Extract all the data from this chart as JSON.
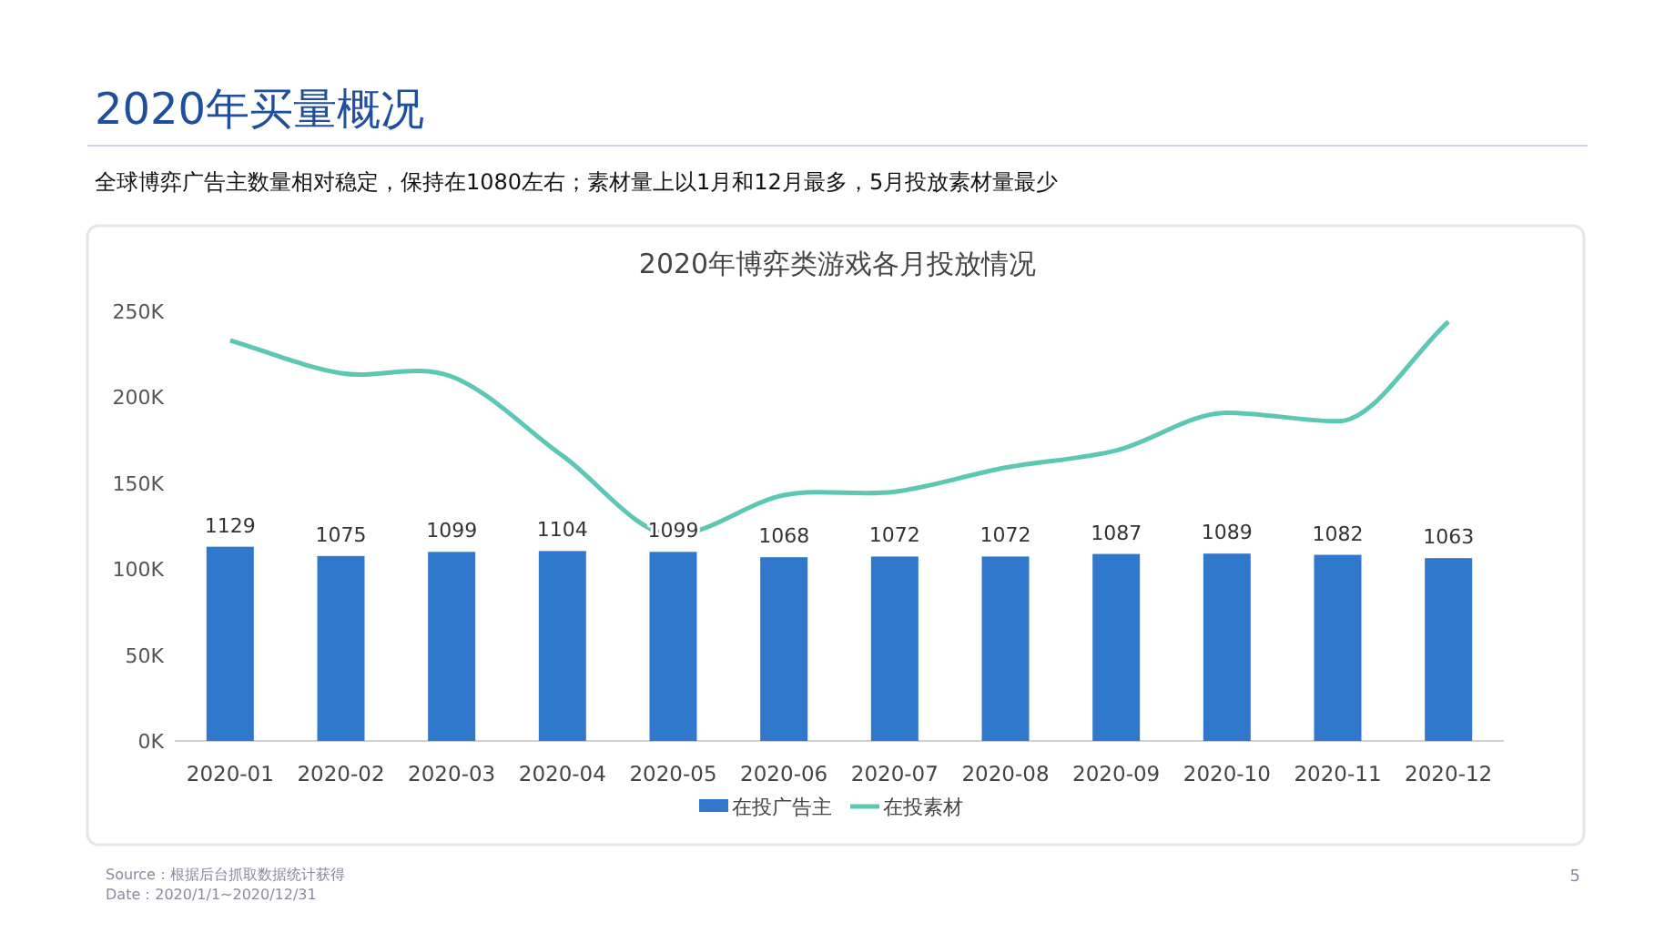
{
  "chart_data": {
    "type": "bar",
    "title": "2020年博弈类游戏各月投放情况",
    "categories": [
      "2020-01",
      "2020-02",
      "2020-03",
      "2020-04",
      "2020-05",
      "2020-06",
      "2020-07",
      "2020-08",
      "2020-09",
      "2020-10",
      "2020-11",
      "2020-12"
    ],
    "series": [
      {
        "name": "在投广告主",
        "axis": "y2",
        "color": "#2f78cb",
        "values": [
          1129,
          1075,
          1099,
          1104,
          1099,
          1068,
          1072,
          1072,
          1087,
          1089,
          1082,
          1063
        ],
        "value_labels": [
          "1129",
          "1075",
          "1099",
          "1104",
          "1099",
          "1068",
          "1072",
          "1072",
          "1087",
          "1089",
          "1082",
          "1063"
        ]
      },
      {
        "name": "在投素材",
        "type": "line",
        "color": "#5cc8b4",
        "values": [
          233,
          214,
          212,
          166,
          120,
          143,
          145,
          159,
          169,
          191,
          186,
          244
        ]
      }
    ],
    "ylim": [
      0,
      250
    ],
    "yticks": [
      {
        "value": 0,
        "label": "0K"
      },
      {
        "value": 50,
        "label": "50K"
      },
      {
        "value": 100,
        "label": "100K"
      },
      {
        "value": 150,
        "label": "150K"
      },
      {
        "value": 200,
        "label": "200K"
      },
      {
        "value": 250,
        "label": "250K"
      }
    ],
    "legend": "bottom",
    "annotations": [
      "2020年买量概况",
      "全球博弈广告主数量相对稳定，保持在1080左右；素材量上以1月和12月最多，5月投放素材量最少",
      "Source：根据后台抓取数据统计获得",
      "Date：2020/1/1~2020/12/31",
      "5"
    ]
  }
}
